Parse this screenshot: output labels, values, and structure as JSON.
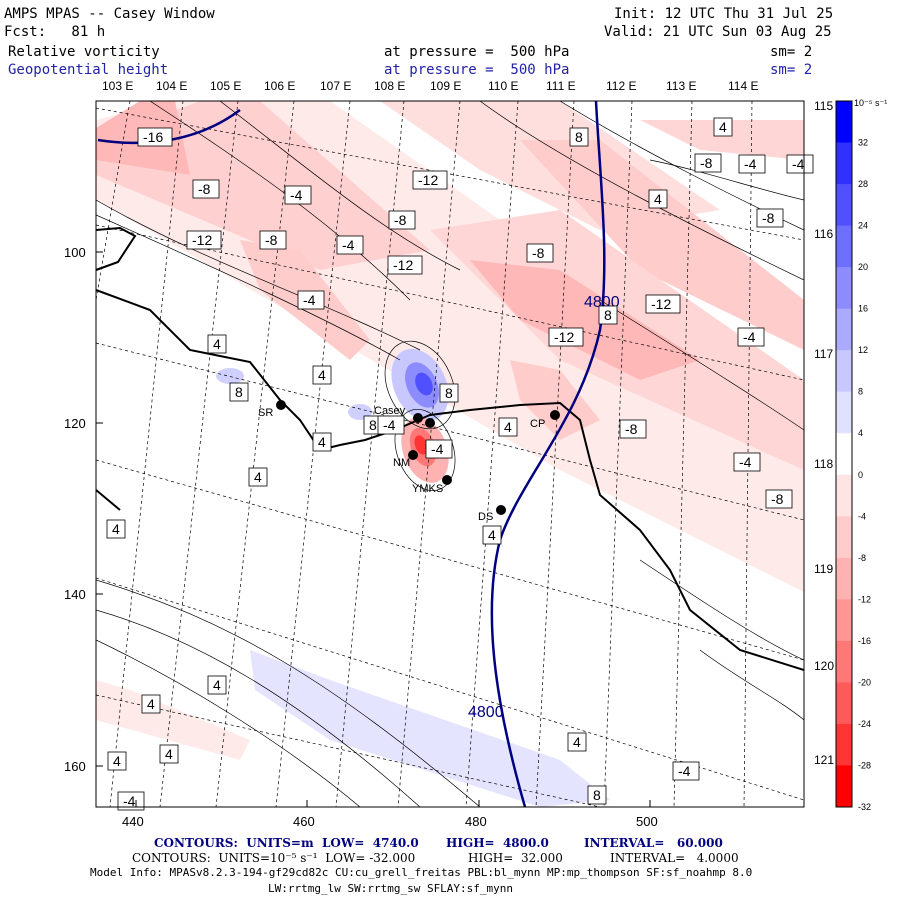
{
  "header": {
    "title": "AMPS MPAS -- Casey Window",
    "fcst": "Fcst:   81 h",
    "init": "Init: 12 UTC Thu 31 Jul 25",
    "valid": "Valid: 21 UTC Sun 03 Aug 25",
    "field1": {
      "name": "Relative vorticity",
      "level": "at pressure =  500 hPa",
      "sm": "sm= 2"
    },
    "field2": {
      "name": "Geopotential height",
      "level": "at pressure =  500 hPa",
      "sm": "sm= 2"
    }
  },
  "axes": {
    "top_lon": [
      "103 E",
      "104 E",
      "105 E",
      "106 E",
      "107 E",
      "108 E",
      "109 E",
      "110 E",
      "111 E",
      "112 E",
      "113 E",
      "114 E"
    ],
    "right_lon": [
      "115 E",
      "116 E",
      "117 E",
      "118 E",
      "119 E",
      "120 E",
      "121 E"
    ],
    "left_y": [
      "100",
      "120",
      "140",
      "160"
    ],
    "bottom_x": [
      "440",
      "460",
      "480",
      "500"
    ]
  },
  "colorbar": {
    "unit": "10⁻⁵ s⁻¹",
    "labels": [
      "32",
      "28",
      "24",
      "20",
      "16",
      "12",
      "8",
      "4",
      "0",
      "-4",
      "-8",
      "-12",
      "-16",
      "-20",
      "-24",
      "-28",
      "-32"
    ],
    "colors": [
      "#0000ff",
      "#3030ff",
      "#5050ff",
      "#6e6eff",
      "#8c8cff",
      "#aaaaff",
      "#c8c8ff",
      "#e0e0ff",
      "#ffffff",
      "#ffe4e4",
      "#ffcccc",
      "#ffb2b2",
      "#ff9696",
      "#ff7878",
      "#ff5a5a",
      "#ff3434",
      "#ff0000"
    ]
  },
  "stations": [
    "SR",
    "Casey",
    "NM",
    "YMKS",
    "DS",
    "CP"
  ],
  "contour_labels": {
    "vort": [
      "-16",
      "-8",
      "-12",
      "-8",
      "-4",
      "-4",
      "-12",
      "-8",
      "-4",
      "-12",
      "-8",
      "-12",
      "-8",
      "-12",
      "-4",
      "-8",
      "-4",
      "-8",
      "-8",
      "-4",
      "-4",
      "8",
      "8",
      "8",
      "4",
      "4",
      "8",
      "4",
      "4",
      "4",
      "4",
      "4",
      "4",
      "4",
      "4",
      "4",
      "4",
      "4",
      "4",
      "-4",
      "8",
      "-4",
      "-4",
      "-4",
      "8"
    ],
    "height": [
      "4800",
      "4800"
    ]
  },
  "footer": {
    "line1": {
      "a": "CONTOURS:  UNITS=m  LOW=  4740.0",
      "b": "HIGH=  4800.0",
      "c": "INTERVAL=   60.000"
    },
    "line2": {
      "a": "CONTOURS:  UNITS=10⁻⁵ s⁻¹  LOW= -32.000",
      "b": "HIGH=  32.000",
      "c": "INTERVAL=   4.0000"
    },
    "line3": "Model Info: MPASv8.2.3-194-gf29cd82c CU:cu_grell_freitas PBL:bl_mynn MP:mp_thompson SF:sf_noahmp 8.0",
    "line4": "LW:rrtmg_lw SW:rrtmg_sw SFLAY:sf_mynn"
  }
}
